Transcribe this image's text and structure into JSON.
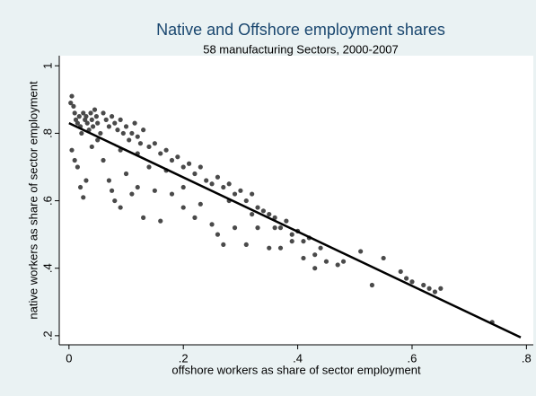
{
  "chart_data": {
    "type": "scatter",
    "title": "Native and Offshore employment shares",
    "subtitle": "58 manufacturing Sectors, 2000-2007",
    "x_label": "offshore workers as share of sector employment",
    "y_label": "native workers as share of sector employment",
    "xlim": [
      -0.017,
      0.812
    ],
    "ylim": [
      0.173,
      1.03
    ],
    "xticks": [
      0,
      {
        "value": 0.2,
        "label": ".2"
      },
      {
        "value": 0.4,
        "label": ".4"
      },
      {
        "value": 0.6,
        "label": ".6"
      },
      {
        "value": 0.8,
        "label": ".8"
      }
    ],
    "yticks": [
      {
        "value": 0.2,
        "label": ".2"
      },
      {
        "value": 0.4,
        "label": ".4"
      },
      {
        "value": 0.6,
        "label": ".6"
      },
      {
        "value": 0.8,
        "label": ".8"
      },
      1
    ],
    "series": [
      {
        "type": "scatter",
        "color": "#4a4a4a",
        "x": [
          0.003,
          0.005,
          0.008,
          0.01,
          0.012,
          0.015,
          0.018,
          0.02,
          0.022,
          0.025,
          0.028,
          0.03,
          0.032,
          0.035,
          0.038,
          0.04,
          0.042,
          0.045,
          0.048,
          0.05,
          0.055,
          0.06,
          0.065,
          0.07,
          0.075,
          0.08,
          0.085,
          0.09,
          0.095,
          0.1,
          0.105,
          0.11,
          0.115,
          0.12,
          0.125,
          0.13,
          0.14,
          0.15,
          0.16,
          0.17,
          0.18,
          0.19,
          0.2,
          0.21,
          0.22,
          0.23,
          0.24,
          0.25,
          0.26,
          0.27,
          0.28,
          0.29,
          0.3,
          0.31,
          0.32,
          0.33,
          0.34,
          0.35,
          0.36,
          0.37,
          0.38,
          0.39,
          0.4,
          0.41,
          0.42,
          0.43,
          0.44,
          0.45,
          0.47,
          0.51,
          0.53,
          0.55,
          0.58,
          0.59,
          0.6,
          0.62,
          0.63,
          0.64,
          0.65,
          0.74,
          0.005,
          0.01,
          0.015,
          0.02,
          0.025,
          0.03,
          0.04,
          0.06,
          0.07,
          0.075,
          0.08,
          0.09,
          0.1,
          0.11,
          0.12,
          0.13,
          0.15,
          0.16,
          0.18,
          0.2,
          0.22,
          0.23,
          0.25,
          0.26,
          0.27,
          0.29,
          0.31,
          0.33,
          0.35,
          0.37,
          0.39,
          0.41,
          0.43,
          0.48,
          0.2,
          0.17,
          0.14,
          0.05,
          0.09,
          0.12,
          0.28,
          0.32,
          0.36
        ],
        "values": [
          0.89,
          0.91,
          0.88,
          0.86,
          0.84,
          0.83,
          0.85,
          0.82,
          0.8,
          0.86,
          0.84,
          0.85,
          0.83,
          0.81,
          0.86,
          0.84,
          0.82,
          0.87,
          0.85,
          0.83,
          0.8,
          0.86,
          0.84,
          0.82,
          0.85,
          0.83,
          0.81,
          0.84,
          0.8,
          0.82,
          0.78,
          0.8,
          0.83,
          0.79,
          0.77,
          0.81,
          0.76,
          0.77,
          0.74,
          0.75,
          0.72,
          0.73,
          0.7,
          0.71,
          0.68,
          0.7,
          0.66,
          0.65,
          0.67,
          0.64,
          0.65,
          0.62,
          0.63,
          0.6,
          0.62,
          0.58,
          0.57,
          0.56,
          0.55,
          0.52,
          0.54,
          0.5,
          0.51,
          0.48,
          0.49,
          0.44,
          0.46,
          0.42,
          0.41,
          0.45,
          0.35,
          0.43,
          0.39,
          0.37,
          0.36,
          0.35,
          0.34,
          0.33,
          0.34,
          0.24,
          0.75,
          0.72,
          0.7,
          0.64,
          0.61,
          0.66,
          0.76,
          0.72,
          0.66,
          0.63,
          0.6,
          0.58,
          0.68,
          0.62,
          0.64,
          0.55,
          0.63,
          0.54,
          0.62,
          0.58,
          0.55,
          0.59,
          0.53,
          0.5,
          0.47,
          0.52,
          0.47,
          0.52,
          0.46,
          0.46,
          0.48,
          0.43,
          0.4,
          0.42,
          0.64,
          0.69,
          0.7,
          0.78,
          0.75,
          0.74,
          0.6,
          0.56,
          0.52
        ]
      },
      {
        "type": "line",
        "color": "#000000",
        "x": [
          0,
          0.79
        ],
        "values": [
          0.83,
          0.195
        ]
      }
    ]
  }
}
